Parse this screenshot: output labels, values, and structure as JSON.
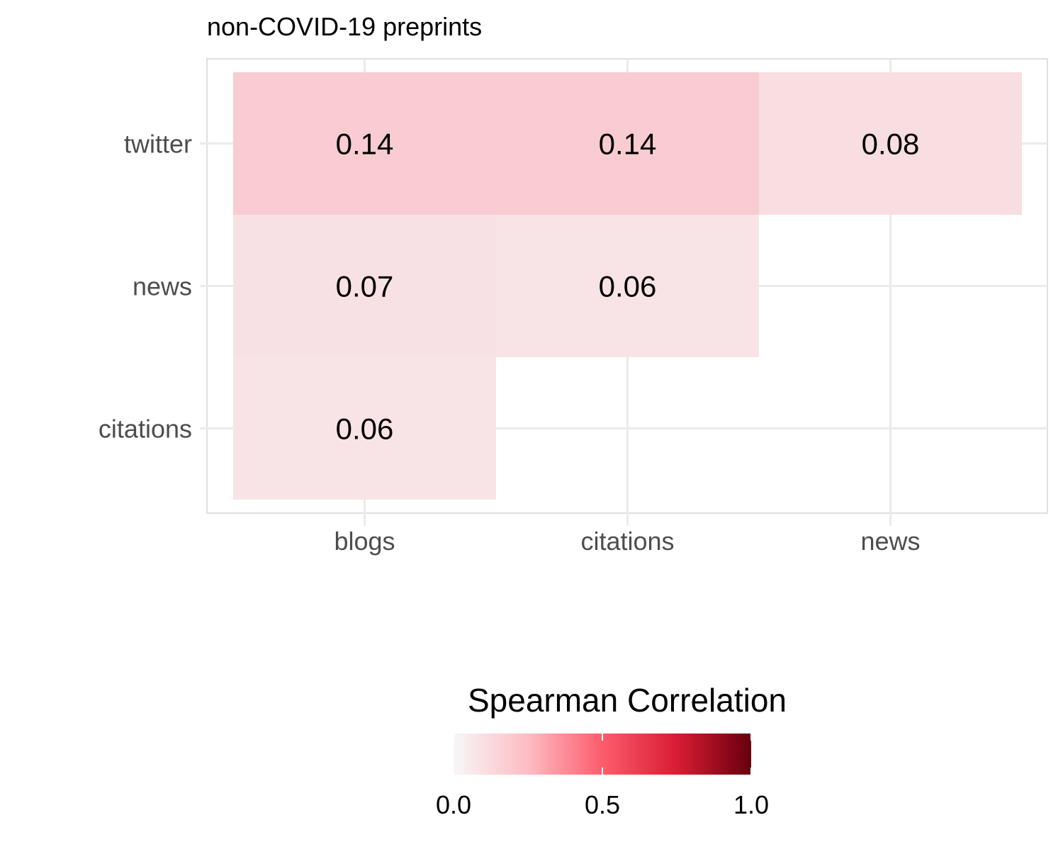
{
  "chart_data": {
    "type": "heatmap",
    "title": "non-COVID-19 preprints",
    "x_categories": [
      "blogs",
      "citations",
      "news"
    ],
    "y_categories": [
      "twitter",
      "news",
      "citations"
    ],
    "cells": [
      {
        "x": "blogs",
        "y": "twitter",
        "value": 0.14,
        "label": "0.14"
      },
      {
        "x": "citations",
        "y": "twitter",
        "value": 0.14,
        "label": "0.14"
      },
      {
        "x": "news",
        "y": "twitter",
        "value": 0.08,
        "label": "0.08"
      },
      {
        "x": "blogs",
        "y": "news",
        "value": 0.07,
        "label": "0.07"
      },
      {
        "x": "citations",
        "y": "news",
        "value": 0.06,
        "label": "0.06"
      },
      {
        "x": "blogs",
        "y": "citations",
        "value": 0.06,
        "label": "0.06"
      }
    ],
    "legend": {
      "title": "Spearman Correlation",
      "range": [
        0,
        1
      ],
      "ticks": [
        {
          "value": 0,
          "label": "0.0"
        },
        {
          "value": 0.5,
          "label": "0.5"
        },
        {
          "value": 1,
          "label": "1.0"
        }
      ],
      "placement": "bottom",
      "colors": {
        "low": "#f7f7f7",
        "mid": "#fc5c6c",
        "high": "#67000d"
      }
    },
    "grid": true
  }
}
